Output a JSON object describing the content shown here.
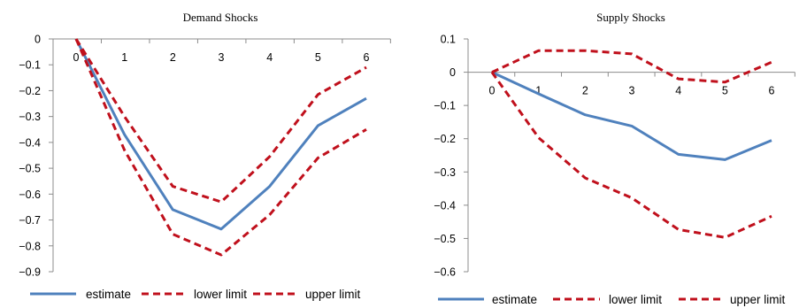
{
  "chart_data": [
    {
      "type": "line",
      "title": "Demand Shocks",
      "xlabel": "",
      "ylabel": "",
      "x": [
        0,
        1,
        2,
        3,
        4,
        5,
        6
      ],
      "ylim": [
        -0.9,
        0
      ],
      "yticks": [
        "0",
        "-0.1",
        "-0.2",
        "-0.3",
        "-0.4",
        "-0.5",
        "-0.6",
        "-0.7",
        "-0.8",
        "-0.9"
      ],
      "xticks": [
        "0",
        "1",
        "2",
        "3",
        "4",
        "5",
        "6"
      ],
      "x_axis_at_y": 0,
      "grid": false,
      "legend_position": "bottom",
      "series": [
        {
          "name": "estimate",
          "style": "solid",
          "color": "#4f81bd",
          "values": [
            0,
            -0.37,
            -0.66,
            -0.735,
            -0.57,
            -0.335,
            -0.23
          ]
        },
        {
          "name": "lower limit",
          "style": "dashed",
          "color": "#c0101c",
          "values": [
            0,
            -0.43,
            -0.755,
            -0.835,
            -0.68,
            -0.46,
            -0.35
          ]
        },
        {
          "name": "upper limit",
          "style": "dashed",
          "color": "#c0101c",
          "values": [
            0,
            -0.3,
            -0.57,
            -0.63,
            -0.455,
            -0.215,
            -0.11
          ]
        }
      ]
    },
    {
      "type": "line",
      "title": "Supply Shocks",
      "xlabel": "",
      "ylabel": "",
      "x": [
        0,
        1,
        2,
        3,
        4,
        5,
        6
      ],
      "ylim": [
        -0.6,
        0.1
      ],
      "yticks": [
        "0.1",
        "0",
        "-0.1",
        "-0.2",
        "-0.3",
        "-0.4",
        "-0.5",
        "-0.6"
      ],
      "xticks": [
        "0",
        "1",
        "2",
        "3",
        "4",
        "5",
        "6"
      ],
      "x_axis_at_y": 0,
      "grid": false,
      "legend_position": "bottom",
      "series": [
        {
          "name": "estimate",
          "style": "solid",
          "color": "#4f81bd",
          "values": [
            0,
            -0.065,
            -0.128,
            -0.162,
            -0.247,
            -0.263,
            -0.205
          ]
        },
        {
          "name": "lower limit",
          "style": "dashed",
          "color": "#c0101c",
          "values": [
            0,
            -0.197,
            -0.318,
            -0.378,
            -0.473,
            -0.497,
            -0.433
          ]
        },
        {
          "name": "upper limit",
          "style": "dashed",
          "color": "#c0101c",
          "values": [
            0,
            0.065,
            0.065,
            0.055,
            -0.02,
            -0.03,
            0.03
          ]
        }
      ]
    }
  ]
}
